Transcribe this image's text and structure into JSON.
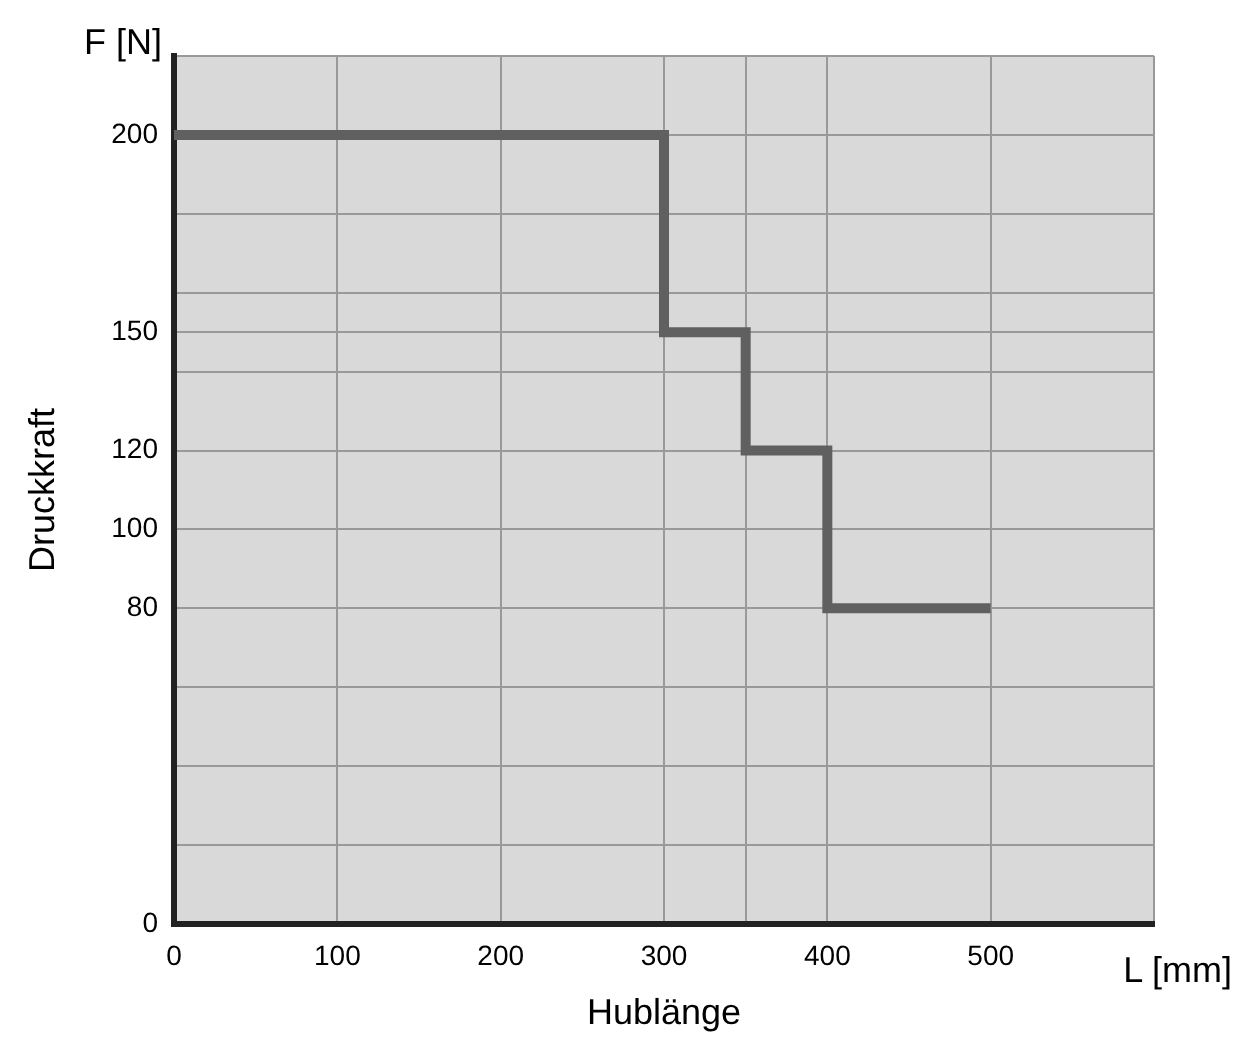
{
  "chart_data": {
    "type": "step",
    "xlabel": "Hublänge",
    "ylabel": "Druckkraft",
    "annotations": [
      "F [N]",
      "L [mm]"
    ],
    "x": [
      0,
      300,
      350,
      400,
      500
    ],
    "series": [
      {
        "color": "#606060",
        "values": [
          200,
          150,
          120,
          80,
          80
        ]
      }
    ],
    "xlim": [
      0,
      600
    ],
    "xticks": [
      0,
      100,
      200,
      300,
      {
        "value": 350,
        "label": null
      },
      400,
      500,
      {
        "value": 600,
        "label": null
      }
    ],
    "ylim": [
      0,
      220
    ],
    "yticks": [
      0,
      {
        "value": 20,
        "label": null
      },
      {
        "value": 40,
        "label": null
      },
      {
        "value": 60,
        "label": null
      },
      80,
      100,
      120,
      {
        "value": 140,
        "label": null
      },
      150,
      {
        "value": 160,
        "label": null
      },
      {
        "value": 180,
        "label": null
      },
      200,
      {
        "value": 220,
        "label": null
      }
    ],
    "grid": true
  }
}
